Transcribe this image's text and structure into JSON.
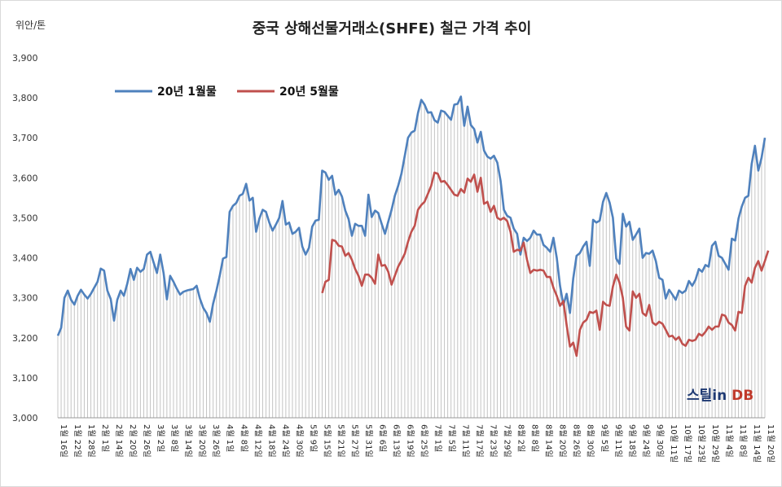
{
  "chart_data": {
    "type": "line",
    "title": "중국 상해선물거래소(SHFE) 철근 가격 추이",
    "unit_label": "위안/톤",
    "ylim": [
      3000,
      3900
    ],
    "yticks": [
      "3,000",
      "3,100",
      "3,200",
      "3,300",
      "3,400",
      "3,500",
      "3,600",
      "3,700",
      "3,800",
      "3,900"
    ],
    "grid": false,
    "legend_position": "top-left",
    "x_tick_labels": [
      "1월 16일",
      "1월 22일",
      "1월 28일",
      "2월 1일",
      "2월 14일",
      "2월 20일",
      "2월 26일",
      "3월 2일",
      "3월 8일",
      "3월 14일",
      "3월 20일",
      "3월 26일",
      "4월 1일",
      "4월 8일",
      "4월 12일",
      "4월 18일",
      "4월 24일",
      "4월 30일",
      "5월 9일",
      "5월 15일",
      "5월 21일",
      "5월 27일",
      "5월 31일",
      "6월 6일",
      "6월 13일",
      "6월 19일",
      "6월 25일",
      "7월 1일",
      "7월 5일",
      "7월 11일",
      "7월 17일",
      "7월 23일",
      "7월 29일",
      "8월 2일",
      "8월 8일",
      "8월 14일",
      "8월 20일",
      "8월 26일",
      "8월 30일",
      "9월 5일",
      "9월 11일",
      "9월 18일",
      "9월 24일",
      "9월 30일",
      "10월 11일",
      "10월 17일",
      "10월 23일",
      "10월 29일",
      "11월 4일",
      "11월 8일",
      "11월 14일",
      "11월 20일"
    ],
    "series": [
      {
        "name": "20년 1월물",
        "color": "#4f81bd",
        "start_index": 0,
        "values": [
          3205,
          3225,
          3300,
          3318,
          3295,
          3283,
          3305,
          3320,
          3308,
          3298,
          3310,
          3325,
          3340,
          3373,
          3368,
          3318,
          3297,
          3243,
          3295,
          3318,
          3305,
          3335,
          3372,
          3345,
          3375,
          3365,
          3372,
          3408,
          3415,
          3388,
          3362,
          3408,
          3362,
          3296,
          3355,
          3340,
          3323,
          3308,
          3315,
          3318,
          3320,
          3322,
          3330,
          3298,
          3275,
          3262,
          3240,
          3285,
          3318,
          3355,
          3398,
          3402,
          3515,
          3530,
          3537,
          3555,
          3560,
          3585,
          3543,
          3550,
          3465,
          3498,
          3520,
          3515,
          3488,
          3468,
          3483,
          3500,
          3542,
          3483,
          3488,
          3460,
          3465,
          3475,
          3428,
          3408,
          3425,
          3478,
          3493,
          3495,
          3618,
          3613,
          3595,
          3605,
          3558,
          3570,
          3553,
          3518,
          3497,
          3455,
          3485,
          3480,
          3480,
          3455,
          3558,
          3502,
          3518,
          3512,
          3485,
          3460,
          3490,
          3520,
          3555,
          3580,
          3610,
          3655,
          3700,
          3713,
          3718,
          3762,
          3795,
          3783,
          3763,
          3764,
          3744,
          3738,
          3768,
          3765,
          3755,
          3745,
          3783,
          3785,
          3803,
          3730,
          3778,
          3732,
          3722,
          3688,
          3715,
          3668,
          3653,
          3648,
          3655,
          3638,
          3593,
          3520,
          3505,
          3500,
          3473,
          3460,
          3408,
          3450,
          3442,
          3450,
          3468,
          3458,
          3458,
          3432,
          3425,
          3415,
          3450,
          3400,
          3330,
          3282,
          3310,
          3262,
          3348,
          3405,
          3412,
          3428,
          3440,
          3380,
          3495,
          3488,
          3493,
          3540,
          3562,
          3538,
          3500,
          3398,
          3385,
          3510,
          3478,
          3490,
          3445,
          3458,
          3473,
          3400,
          3412,
          3410,
          3418,
          3392,
          3350,
          3345,
          3298,
          3320,
          3308,
          3295,
          3318,
          3312,
          3318,
          3342,
          3330,
          3345,
          3372,
          3365,
          3382,
          3378,
          3430,
          3440,
          3405,
          3400,
          3385,
          3370,
          3448,
          3443,
          3498,
          3528,
          3550,
          3555,
          3635,
          3680,
          3618,
          3650,
          3700
        ]
      },
      {
        "name": "20년 5월물",
        "color": "#c0504d",
        "start_index": 80,
        "values": [
          3312,
          3340,
          3345,
          3445,
          3442,
          3430,
          3428,
          3405,
          3412,
          3395,
          3372,
          3355,
          3330,
          3358,
          3358,
          3350,
          3335,
          3408,
          3380,
          3382,
          3365,
          3333,
          3355,
          3378,
          3393,
          3410,
          3440,
          3465,
          3480,
          3520,
          3532,
          3540,
          3560,
          3580,
          3613,
          3610,
          3590,
          3592,
          3582,
          3570,
          3558,
          3555,
          3572,
          3563,
          3598,
          3590,
          3608,
          3565,
          3600,
          3535,
          3540,
          3515,
          3530,
          3500,
          3495,
          3500,
          3492,
          3465,
          3415,
          3420,
          3418,
          3438,
          3395,
          3362,
          3370,
          3368,
          3370,
          3368,
          3352,
          3352,
          3325,
          3305,
          3280,
          3292,
          3232,
          3178,
          3188,
          3155,
          3220,
          3238,
          3245,
          3265,
          3262,
          3268,
          3220,
          3290,
          3282,
          3280,
          3328,
          3358,
          3338,
          3300,
          3228,
          3218,
          3316,
          3300,
          3310,
          3262,
          3255,
          3282,
          3238,
          3232,
          3240,
          3235,
          3220,
          3203,
          3205,
          3195,
          3202,
          3185,
          3180,
          3195,
          3192,
          3195,
          3210,
          3205,
          3215,
          3228,
          3220,
          3228,
          3228,
          3258,
          3255,
          3238,
          3232,
          3218,
          3265,
          3262,
          3330,
          3350,
          3338,
          3375,
          3392,
          3368,
          3392,
          3418
        ]
      }
    ]
  },
  "legend": {
    "items": [
      "20년 1월물",
      "20년 5월물"
    ]
  },
  "logo": {
    "text": "스틸in DB",
    "part1": "스틸",
    "part2": "in",
    "part3": " DB"
  }
}
